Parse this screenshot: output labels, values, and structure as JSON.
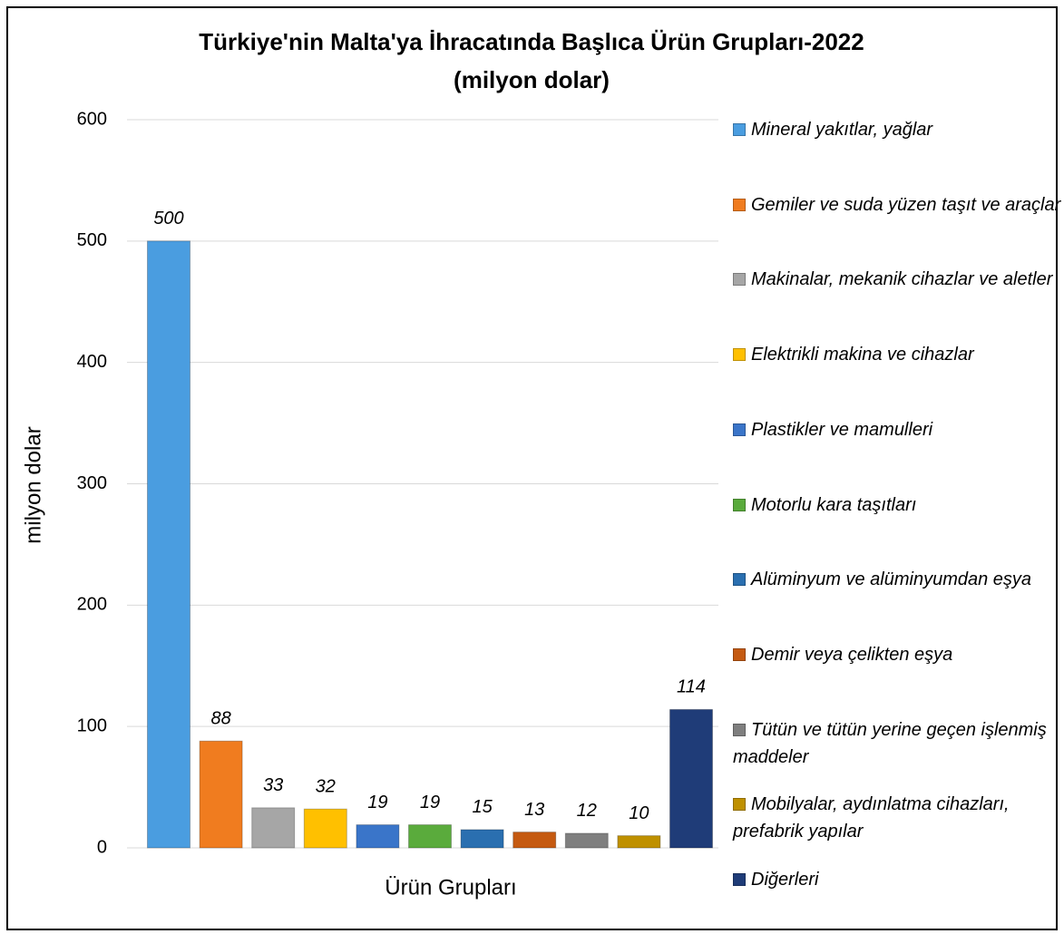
{
  "chart_data": {
    "type": "bar",
    "title": "Türkiye'nin Malta'ya İhracatında Başlıca Ürün Grupları-2022",
    "subtitle": "(milyon dolar)",
    "y_label": "milyon dolar",
    "x_label": "Ürün Grupları",
    "ylim": [
      0,
      600
    ],
    "yticks": [
      0,
      100,
      200,
      300,
      400,
      500,
      600
    ],
    "grid": true,
    "legend": "right",
    "series": [
      {
        "name": "Mineral yakıtlar, yağlar",
        "color": "#4a9de0",
        "values": [
          500
        ]
      },
      {
        "name": "Gemiler ve suda yüzen taşıt ve araçlar",
        "color": "#f07c1f",
        "values": [
          88
        ]
      },
      {
        "name": "Makinalar, mekanik cihazlar ve aletler",
        "color": "#a6a6a6",
        "values": [
          33
        ]
      },
      {
        "name": "Elektrikli makina ve cihazlar",
        "color": "#ffc000",
        "values": [
          32
        ]
      },
      {
        "name": "Plastikler ve mamulleri",
        "color": "#3a75c9",
        "values": [
          19
        ]
      },
      {
        "name": "Motorlu kara taşıtları",
        "color": "#5aab3c",
        "values": [
          19
        ]
      },
      {
        "name": "Alüminyum ve alüminyumdan eşya",
        "color": "#2a6fb0",
        "values": [
          15
        ]
      },
      {
        "name": "Demir veya çelikten eşya",
        "color": "#c55a11",
        "values": [
          13
        ]
      },
      {
        "name": "Tütün ve tütün yerine geçen işlenmiş maddeler",
        "color": "#7f7f7f",
        "values": [
          12
        ]
      },
      {
        "name": "Mobilyalar, aydınlatma cihazları, prefabrik yapılar",
        "color": "#bf9000",
        "values": [
          10
        ]
      },
      {
        "name": "Diğerleri",
        "color": "#1f3c78",
        "values": [
          114
        ]
      }
    ]
  }
}
